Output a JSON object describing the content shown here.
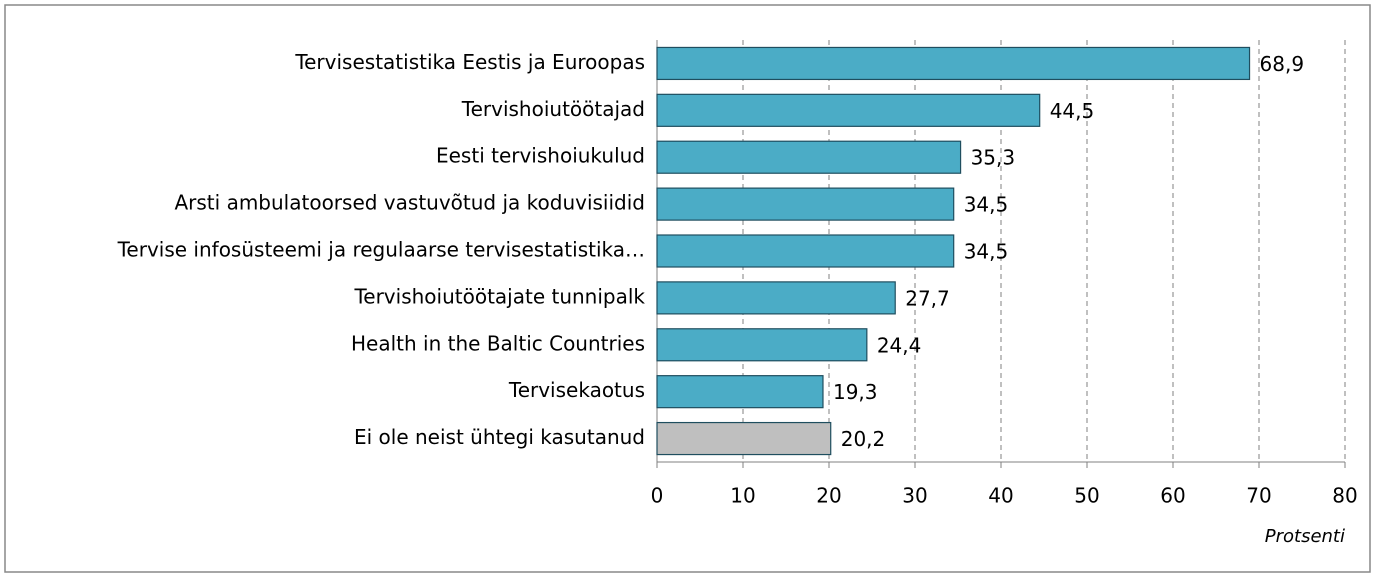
{
  "chart_data": {
    "type": "barh",
    "categories": [
      "Tervisestatistika Eestis ja Euroopas",
      "Tervishoiutöötajad",
      "Eesti tervishoiukulud",
      "Arsti ambulatoorsed vastuvõtud ja koduvisiidid",
      "Tervise infosüsteemi ja regulaarse tervisestatistika…",
      "Tervishoiutöötajate tunnipalk",
      "Health in the Baltic Countries",
      "Tervisekaotus",
      "Ei ole neist ühtegi kasutanud"
    ],
    "values": [
      68.9,
      44.5,
      35.3,
      34.5,
      34.5,
      27.7,
      24.4,
      19.3,
      20.2
    ],
    "value_labels": [
      "68,9",
      "44,5",
      "35,3",
      "34,5",
      "34,5",
      "27,7",
      "24,4",
      "19,3",
      "20,2"
    ],
    "colors": [
      "#4bacc6",
      "#4bacc6",
      "#4bacc6",
      "#4bacc6",
      "#4bacc6",
      "#4bacc6",
      "#4bacc6",
      "#4bacc6",
      "#bfbfbf"
    ],
    "x_label": "Protsenti",
    "xlim": [
      0,
      80
    ],
    "xticks": [
      0,
      10,
      20,
      30,
      40,
      50,
      60,
      70,
      80
    ],
    "grid": true
  }
}
